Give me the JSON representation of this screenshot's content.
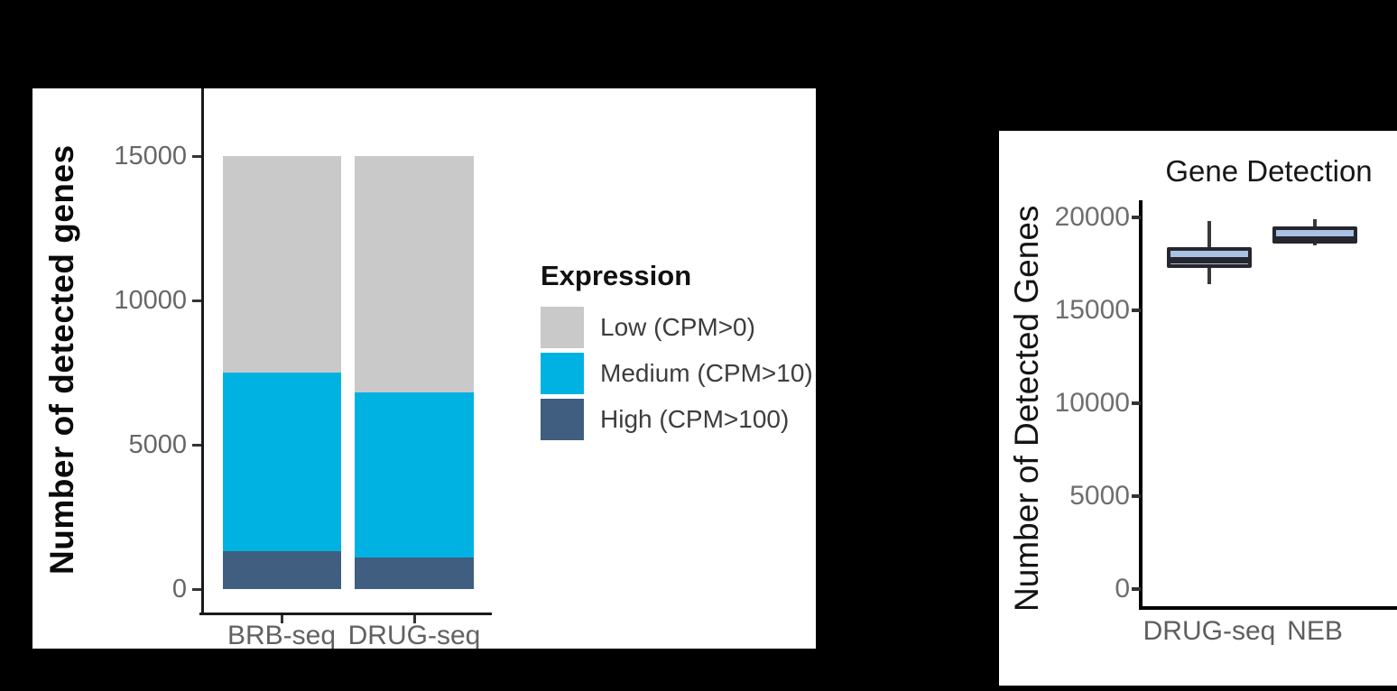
{
  "figure": {
    "background": "#000000",
    "panel_background": "#ffffff"
  },
  "chart_data": [
    {
      "type": "bar",
      "variant": "stacked",
      "title": "",
      "ylabel": "Number of detected genes",
      "xlabel": "",
      "categories": [
        "BRB-seq",
        "DRUG-seq"
      ],
      "yticks": [
        0,
        5000,
        10000,
        15000
      ],
      "ylim": [
        0,
        15000
      ],
      "grid": false,
      "totals": [
        15000,
        15000
      ],
      "series": [
        {
          "name": "Low (CPM>0)",
          "color": "#c9c9c9",
          "values": [
            7500,
            8200
          ]
        },
        {
          "name": "Medium (CPM>10)",
          "color": "#00b2e2",
          "values": [
            6200,
            5700
          ]
        },
        {
          "name": "High (CPM>100)",
          "color": "#3f5e80",
          "values": [
            1300,
            1100
          ]
        }
      ],
      "stack_order_bottom_to_top": [
        "High (CPM>100)",
        "Medium (CPM>10)",
        "Low (CPM>0)"
      ],
      "legend": {
        "title": "Expression",
        "position": "right",
        "entries": [
          "Low (CPM>0)",
          "Medium (CPM>10)",
          "High (CPM>100)"
        ]
      }
    },
    {
      "type": "box",
      "title": "Gene Detection",
      "ylabel": "Number of Detected Genes",
      "xlabel": "",
      "categories": [
        "DRUG-seq",
        "NEB"
      ],
      "yticks": [
        0,
        5000,
        10000,
        15000,
        20000
      ],
      "ylim": [
        0,
        21000
      ],
      "grid": false,
      "box_fill": "#a9c1e2",
      "box_border": "#26262e",
      "whisker_color": "#3a3a3a",
      "boxes": [
        {
          "category": "DRUG-seq",
          "min": 16400,
          "q1": 17300,
          "median": 17700,
          "q3": 18400,
          "max": 19800
        },
        {
          "category": "NEB",
          "min": 18500,
          "q1": 18600,
          "median": 18800,
          "q3": 19500,
          "max": 19900
        }
      ]
    }
  ]
}
